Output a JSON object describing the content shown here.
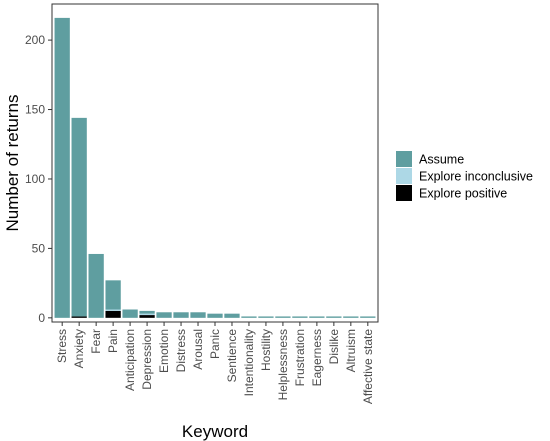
{
  "chart_data": {
    "type": "bar",
    "stacked": true,
    "categories": [
      "Stress",
      "Anxiety",
      "Fear",
      "Pain",
      "Anticipation",
      "Depression",
      "Emotion",
      "Distress",
      "Arousal",
      "Panic",
      "Sentience",
      "Intentionality",
      "Hostility",
      "Helplessness",
      "Frustration",
      "Eagerness",
      "Dislike",
      "Altruism",
      "Affective state"
    ],
    "series": [
      {
        "name": "Explore positive",
        "color": "#000000",
        "values": [
          0,
          1,
          0,
          5,
          0,
          2,
          0,
          0,
          0,
          0,
          0,
          0,
          0,
          0,
          0,
          0,
          0,
          0,
          0
        ]
      },
      {
        "name": "Explore inconclusive",
        "color": "#add8e6",
        "values": [
          0,
          0,
          0,
          1,
          0,
          1,
          0,
          0,
          0,
          0,
          0,
          0,
          0,
          0,
          0,
          0,
          0,
          0,
          0
        ]
      },
      {
        "name": "Assume",
        "color": "#5f9ea0",
        "values": [
          216,
          143,
          46,
          21,
          6,
          2,
          4,
          4,
          4,
          3,
          3,
          1,
          1,
          1,
          1,
          1,
          1,
          1,
          1
        ]
      }
    ],
    "xlabel": "Keyword",
    "ylabel": "Number of returns",
    "ylim": [
      -3,
      226
    ],
    "yticks": [
      0,
      50,
      100,
      150,
      200
    ],
    "grid": false,
    "legend_position": "right",
    "legend_order": [
      "Assume",
      "Explore inconclusive",
      "Explore positive"
    ]
  }
}
